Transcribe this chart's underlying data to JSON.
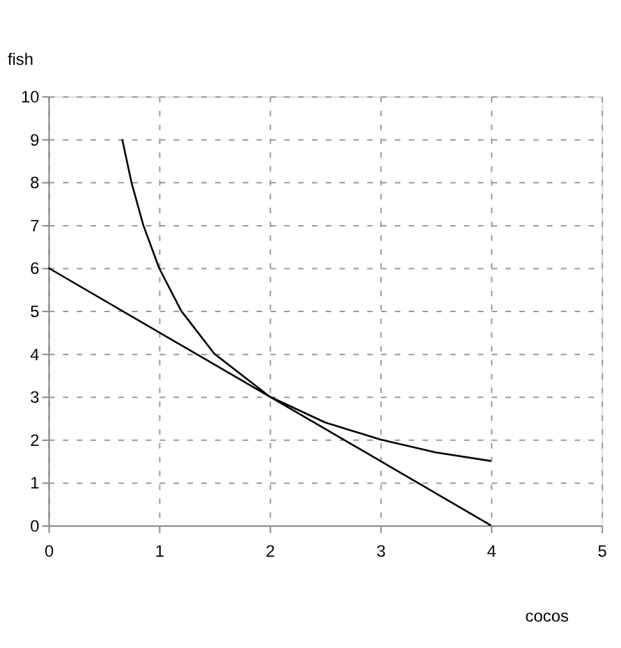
{
  "chart_data": {
    "type": "line",
    "xlabel": "cocos",
    "ylabel": "fish",
    "series": [
      {
        "color": "#000000",
        "x": [
          0.667,
          0.75,
          0.857,
          1,
          1.2,
          1.5,
          2,
          2.5,
          3,
          3.5,
          4
        ],
        "values": [
          9,
          8,
          7,
          6,
          5,
          4,
          3,
          2.4,
          2,
          1.7,
          1.5
        ]
      },
      {
        "color": "#000000",
        "x": [
          0,
          4
        ],
        "values": [
          6,
          0
        ]
      }
    ],
    "xlim": [
      0,
      5
    ],
    "xticks": [
      0,
      1,
      2,
      3,
      4,
      5
    ],
    "ylim": [
      0,
      10
    ],
    "yticks": [
      0,
      1,
      2,
      3,
      4,
      5,
      6,
      7,
      8,
      9,
      10
    ],
    "grid": true,
    "line_style": "solid",
    "marker": "none"
  }
}
